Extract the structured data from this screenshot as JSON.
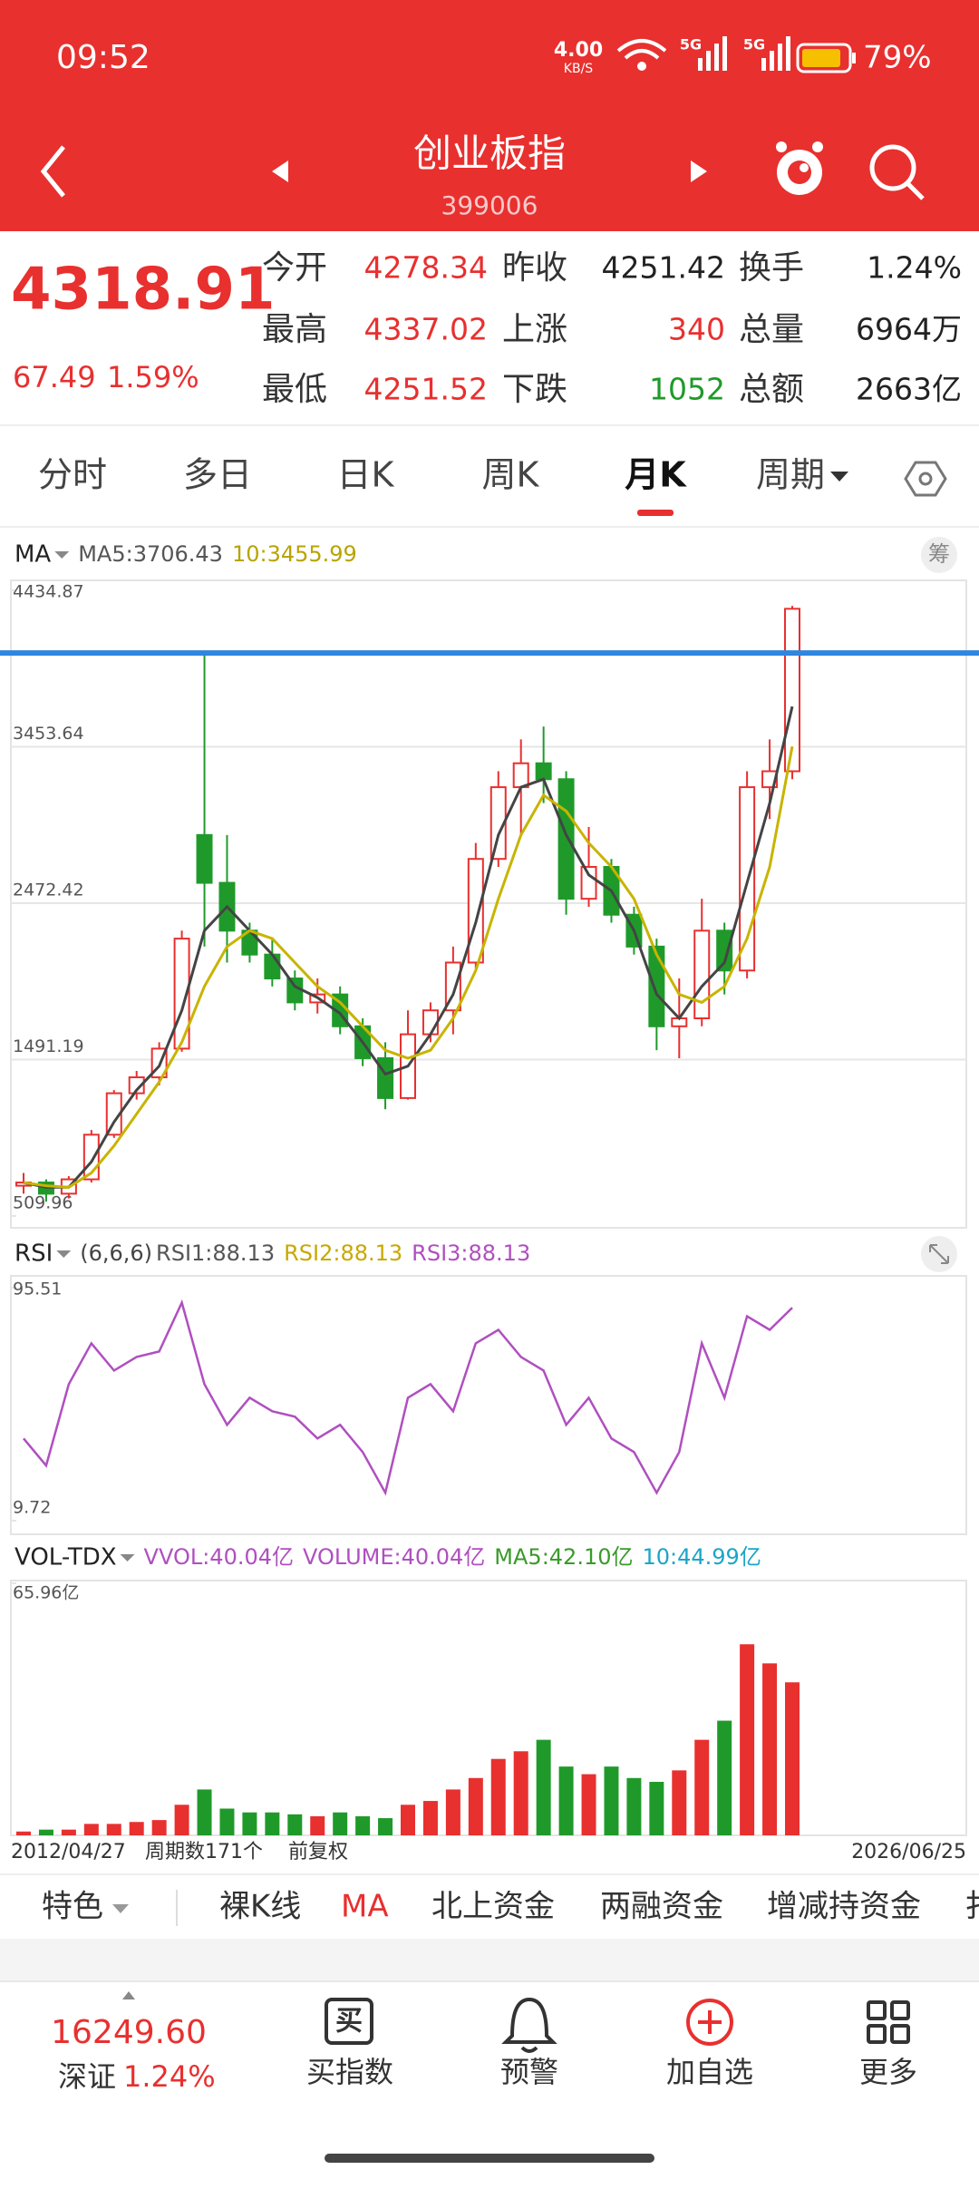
{
  "status": {
    "time": "09:52",
    "net_speed": "4.00",
    "net_unit": "KB/S",
    "signal1": "5G",
    "signal2": "5G",
    "battery": "79%"
  },
  "header": {
    "title": "创业板指",
    "code": "399006"
  },
  "quote": {
    "price": "4318.91",
    "change": "67.49",
    "change_pct": "1.59%",
    "fields": [
      [
        "今开",
        "4278.34",
        "昨收",
        "4251.42",
        "换手",
        "1.24%"
      ],
      [
        "最高",
        "4337.02",
        "上涨",
        "340",
        "总量",
        "6964万"
      ],
      [
        "最低",
        "4251.52",
        "下跌",
        "1052",
        "总额",
        "2663亿"
      ]
    ]
  },
  "tabs": [
    "分时",
    "多日",
    "日K",
    "周K",
    "月K",
    "周期"
  ],
  "active_tab": 4,
  "chart_data": [
    {
      "type": "candlestick",
      "indicator": "MA",
      "legend": [
        "MA5:3706.43",
        "10:3455.99"
      ],
      "chip": "筹",
      "up_color": "#e8302f",
      "down_color": "#1f9a2a",
      "open": [
        700,
        720,
        650,
        740,
        1020,
        1280,
        1380,
        1560,
        2900,
        2600,
        2300,
        2150,
        2000,
        1850,
        1900,
        1700,
        1500,
        1250,
        1650,
        1800,
        2100,
        2750,
        3200,
        3350,
        3250,
        2500,
        2700,
        2400,
        2200,
        1700,
        1750,
        2300,
        2050,
        3200,
        3300
      ],
      "high": [
        780,
        740,
        760,
        1050,
        1300,
        1420,
        1600,
        2300,
        4037,
        2900,
        2350,
        2250,
        2050,
        2000,
        1950,
        1750,
        1600,
        1800,
        1850,
        2200,
        2850,
        3300,
        3500,
        3580,
        3300,
        2950,
        2750,
        2450,
        2250,
        2000,
        2500,
        2350,
        3300,
        3500,
        4337
      ],
      "low": [
        650,
        600,
        620,
        720,
        1000,
        1240,
        1330,
        1540,
        2200,
        2100,
        2100,
        1950,
        1800,
        1780,
        1650,
        1450,
        1180,
        1240,
        1600,
        1650,
        2050,
        2700,
        2900,
        3100,
        2400,
        2450,
        2350,
        2150,
        1550,
        1500,
        1700,
        1900,
        2000,
        3000,
        3250
      ],
      "close": [
        720,
        650,
        740,
        1020,
        1280,
        1380,
        1560,
        2250,
        2600,
        2300,
        2150,
        2000,
        1850,
        1900,
        1700,
        1500,
        1250,
        1650,
        1800,
        2100,
        2750,
        3200,
        3350,
        3250,
        2500,
        2700,
        2400,
        2200,
        1700,
        1750,
        2300,
        2050,
        3200,
        3300,
        4319
      ],
      "series": [
        {
          "color": "#444444",
          "values": [
            720,
            690,
            690,
            850,
            1100,
            1300,
            1450,
            1800,
            2300,
            2450,
            2300,
            2150,
            1950,
            1880,
            1780,
            1600,
            1400,
            1450,
            1650,
            1900,
            2350,
            2900,
            3200,
            3250,
            2900,
            2650,
            2550,
            2300,
            1900,
            1750,
            1950,
            2100,
            2600,
            3100,
            3706
          ]
        },
        {
          "color": "#c8b400",
          "values": [
            720,
            700,
            690,
            780,
            950,
            1150,
            1350,
            1600,
            1950,
            2200,
            2300,
            2250,
            2100,
            1950,
            1850,
            1700,
            1550,
            1500,
            1550,
            1750,
            2050,
            2500,
            2900,
            3150,
            3050,
            2850,
            2700,
            2500,
            2150,
            1900,
            1850,
            1950,
            2250,
            2700,
            3456
          ]
        }
      ],
      "ylim": [
        509.96,
        4434.87
      ],
      "yticks": [
        4434.87,
        3453.64,
        2472.42,
        1491.19,
        509.96
      ],
      "grid": true,
      "hline": {
        "value": 4042,
        "color": "#2e86de"
      }
    },
    {
      "type": "line",
      "indicator": "RSI",
      "params": "(6,6,6)",
      "legend": [
        "RSI1:88.13",
        "RSI2:88.13",
        "RSI3:88.13"
      ],
      "series": [
        {
          "color": "#b04fc0",
          "values": [
            40,
            30,
            60,
            75,
            65,
            70,
            72,
            90,
            60,
            45,
            55,
            50,
            48,
            40,
            45,
            35,
            20,
            55,
            60,
            50,
            75,
            80,
            70,
            65,
            45,
            55,
            40,
            35,
            20,
            35,
            75,
            55,
            85,
            80,
            88.13
          ]
        }
      ],
      "ylim": [
        9.72,
        95.51
      ],
      "yticks": [
        95.51,
        9.72
      ],
      "grid": true
    },
    {
      "type": "bar",
      "indicator": "VOL-TDX",
      "legend": [
        "VVOL:40.04亿",
        "VOLUME:40.04亿",
        "MA5:42.10亿",
        "10:44.99亿"
      ],
      "values": [
        1,
        1.5,
        1.5,
        3,
        3,
        3.5,
        4,
        8,
        12,
        7,
        6,
        6,
        5.5,
        5,
        6,
        5,
        4.5,
        8,
        9,
        12,
        15,
        20,
        22,
        25,
        18,
        16,
        18,
        15,
        14,
        17,
        25,
        30,
        50,
        45,
        40.04
      ],
      "ylim": [
        0,
        65.96
      ],
      "yticks": [
        {
          "value": 65.96,
          "label": "65.96亿"
        }
      ],
      "grid": true
    }
  ],
  "footer": {
    "start_date": "2012/04/27",
    "period_count": "周期数171个",
    "adjust": "前复权",
    "end_date": "2026/06/25"
  },
  "tools": [
    "特色",
    "裸K线",
    "MA",
    "北上资金",
    "两融资金",
    "增减持资金",
    "扌"
  ],
  "bottom": {
    "index_value": "16249.60",
    "index_name": "深证",
    "index_pct": "1.24%",
    "icon_text": "买",
    "nav": [
      "买指数",
      "预警",
      "加自选",
      "更多"
    ]
  }
}
